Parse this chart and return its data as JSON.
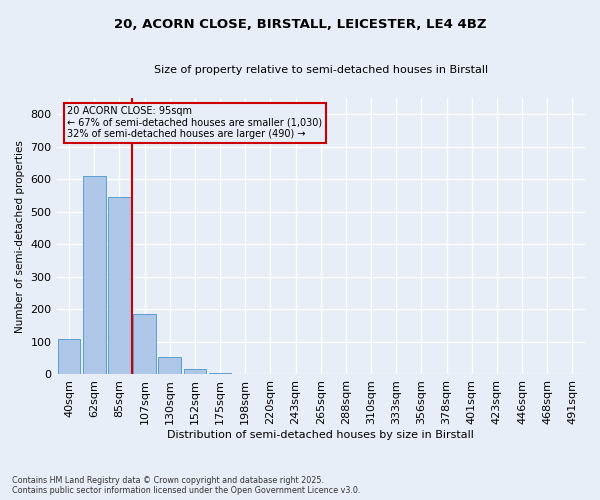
{
  "title_line1": "20, ACORN CLOSE, BIRSTALL, LEICESTER, LE4 4BZ",
  "title_line2": "Size of property relative to semi-detached houses in Birstall",
  "xlabel": "Distribution of semi-detached houses by size in Birstall",
  "ylabel": "Number of semi-detached properties",
  "footnote": "Contains HM Land Registry data © Crown copyright and database right 2025.\nContains public sector information licensed under the Open Government Licence v3.0.",
  "categories": [
    "40sqm",
    "62sqm",
    "85sqm",
    "107sqm",
    "130sqm",
    "152sqm",
    "175sqm",
    "198sqm",
    "220sqm",
    "243sqm",
    "265sqm",
    "288sqm",
    "310sqm",
    "333sqm",
    "356sqm",
    "378sqm",
    "401sqm",
    "423sqm",
    "446sqm",
    "468sqm",
    "491sqm"
  ],
  "values": [
    110,
    610,
    545,
    185,
    55,
    18,
    5,
    0,
    0,
    0,
    0,
    0,
    0,
    0,
    0,
    0,
    0,
    0,
    0,
    0,
    0
  ],
  "bar_color": "#aec6e8",
  "bar_edge_color": "#5a9fd4",
  "vline_x": 2.5,
  "vline_color": "#cc0000",
  "annotation_text_line1": "20 ACORN CLOSE: 95sqm",
  "annotation_text_line2": "← 67% of semi-detached houses are smaller (1,030)",
  "annotation_text_line3": "32% of semi-detached houses are larger (490) →",
  "annotation_box_color": "#cc0000",
  "ylim": [
    0,
    850
  ],
  "yticks": [
    0,
    100,
    200,
    300,
    400,
    500,
    600,
    700,
    800
  ],
  "background_color": "#e8eef7",
  "grid_color": "#ffffff"
}
